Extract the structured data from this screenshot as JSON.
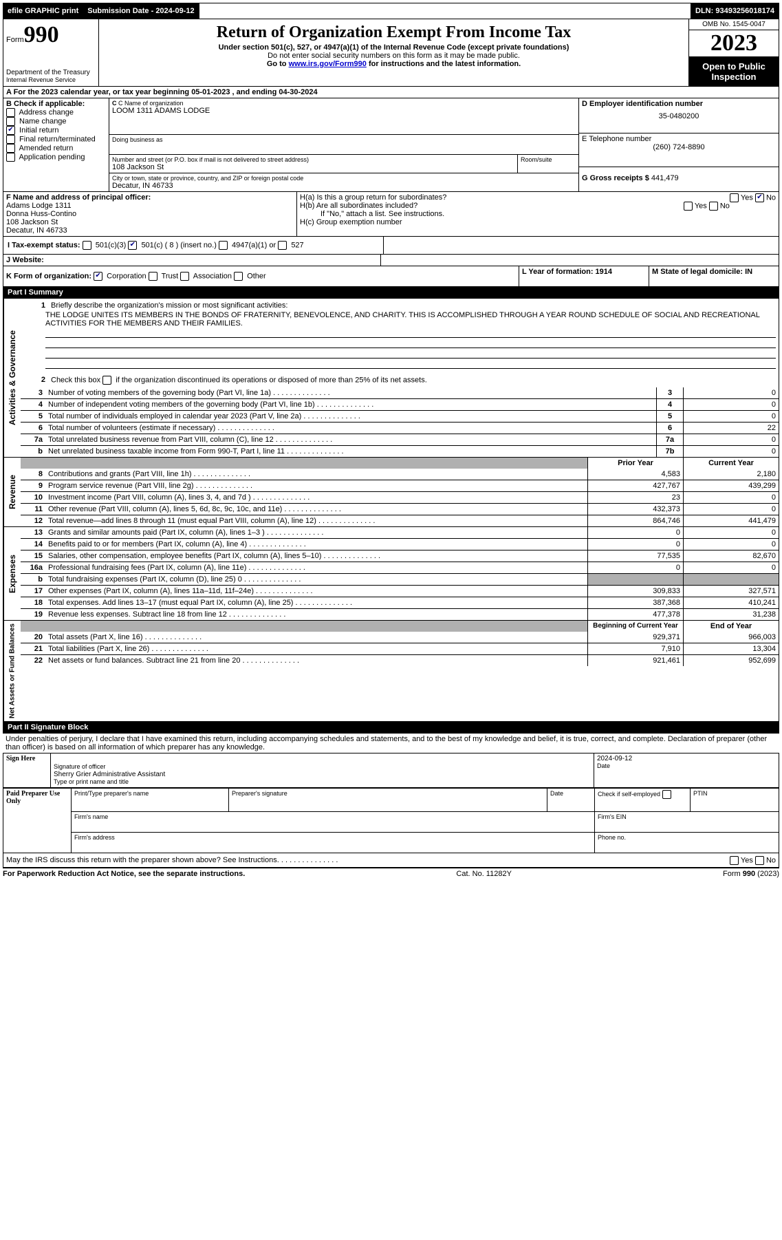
{
  "topbar": {
    "efile": "efile GRAPHIC print",
    "sub_label": "Submission Date - 2024-09-12",
    "dln": "DLN: 93493256018174"
  },
  "header": {
    "form": "Form",
    "form_num": "990",
    "title": "Return of Organization Exempt From Income Tax",
    "subtitle": "Under section 501(c), 527, or 4947(a)(1) of the Internal Revenue Code (except private foundations)",
    "ssn_warn": "Do not enter social security numbers on this form as it may be made public.",
    "goto": "Go to ",
    "goto_link": "www.irs.gov/Form990",
    "goto_after": " for instructions and the latest information.",
    "dept": "Department of the Treasury",
    "irs": "Internal Revenue Service",
    "omb": "OMB No. 1545-0047",
    "year": "2023",
    "open": "Open to Public Inspection"
  },
  "sectionA": {
    "A": "A For the 2023 calendar year, or tax year beginning 05-01-2023   , and ending 04-30-2024",
    "B_label": "B Check if applicable:",
    "B_items": [
      "Address change",
      "Name change",
      "Initial return",
      "Final return/terminated",
      "Amended return",
      "Application pending"
    ],
    "B_checked": [
      false,
      false,
      true,
      false,
      false,
      false
    ],
    "C_label": "C Name of organization",
    "C_name": "LOOM 1311 ADAMS LODGE",
    "dba_label": "Doing business as",
    "dba": "",
    "addr_label": "Number and street (or P.O. box if mail is not delivered to street address)",
    "room_label": "Room/suite",
    "addr": "108 Jackson St",
    "city_label": "City or town, state or province, country, and ZIP or foreign postal code",
    "city": "Decatur, IN  46733",
    "D_label": "D Employer identification number",
    "D": "35-0480200",
    "E_label": "E Telephone number",
    "E": "(260) 724-8890",
    "G_label": "G Gross receipts $",
    "G": "441,479",
    "F_label": "F  Name and address of principal officer:",
    "F_name": "Adams Lodge 1311",
    "F_name2": "Donna Huss-Contino",
    "F_addr": "108 Jackson St",
    "F_city": "Decatur, IN  46733",
    "Ha_label": "H(a)  Is this a group return for subordinates?",
    "Hb_label": "H(b)  Are all subordinates included?",
    "Hb_note": "If \"No,\" attach a list. See instructions.",
    "Hc_label": "H(c)  Group exemption number ",
    "yes": "Yes",
    "no": "No",
    "I_label": "I  Tax-exempt status:",
    "I_501c3": "501(c)(3)",
    "I_501c": "501(c) ( 8 ) (insert no.)",
    "I_4947": "4947(a)(1) or",
    "I_527": "527",
    "J_label": "J  Website: ",
    "K_label": "K Form of organization:",
    "K_corp": "Corporation",
    "K_trust": "Trust",
    "K_assoc": "Association",
    "K_other": "Other",
    "L_label": "L Year of formation: 1914",
    "M_label": "M State of legal domicile: IN"
  },
  "part1": {
    "title": "Part I      Summary",
    "q1": "Briefly describe the organization's mission or most significant activities:",
    "mission": "THE LODGE UNITES ITS MEMBERS IN THE BONDS OF FRATERNITY, BENEVOLENCE, AND CHARITY. THIS IS ACCOMPLISHED THROUGH A YEAR ROUND SCHEDULE OF SOCIAL AND RECREATIONAL ACTIVITIES FOR THE MEMBERS AND THEIR FAMILIES.",
    "q2": "Check this box       if the organization discontinued its operations or disposed of more than 25% of its net assets.",
    "lines_gov": [
      {
        "n": "3",
        "t": "Number of voting members of the governing body (Part VI, line 1a)",
        "c": "3",
        "v": "0"
      },
      {
        "n": "4",
        "t": "Number of independent voting members of the governing body (Part VI, line 1b)",
        "c": "4",
        "v": "0"
      },
      {
        "n": "5",
        "t": "Total number of individuals employed in calendar year 2023 (Part V, line 2a)",
        "c": "5",
        "v": "0"
      },
      {
        "n": "6",
        "t": "Total number of volunteers (estimate if necessary)",
        "c": "6",
        "v": "22"
      },
      {
        "n": "7a",
        "t": "Total unrelated business revenue from Part VIII, column (C), line 12",
        "c": "7a",
        "v": "0"
      },
      {
        "n": "b",
        "t": "Net unrelated business taxable income from Form 990-T, Part I, line 11",
        "c": "7b",
        "v": "0"
      }
    ],
    "prior_header": "Prior Year",
    "current_header": "Current Year",
    "revenue": [
      {
        "n": "8",
        "t": "Contributions and grants (Part VIII, line 1h)",
        "p": "4,583",
        "c": "2,180"
      },
      {
        "n": "9",
        "t": "Program service revenue (Part VIII, line 2g)",
        "p": "427,767",
        "c": "439,299"
      },
      {
        "n": "10",
        "t": "Investment income (Part VIII, column (A), lines 3, 4, and 7d )",
        "p": "23",
        "c": "0"
      },
      {
        "n": "11",
        "t": "Other revenue (Part VIII, column (A), lines 5, 6d, 8c, 9c, 10c, and 11e)",
        "p": "432,373",
        "c": "0"
      },
      {
        "n": "12",
        "t": "Total revenue—add lines 8 through 11 (must equal Part VIII, column (A), line 12)",
        "p": "864,746",
        "c": "441,479"
      }
    ],
    "expenses": [
      {
        "n": "13",
        "t": "Grants and similar amounts paid (Part IX, column (A), lines 1–3 )",
        "p": "0",
        "c": "0"
      },
      {
        "n": "14",
        "t": "Benefits paid to or for members (Part IX, column (A), line 4)",
        "p": "0",
        "c": "0"
      },
      {
        "n": "15",
        "t": "Salaries, other compensation, employee benefits (Part IX, column (A), lines 5–10)",
        "p": "77,535",
        "c": "82,670"
      },
      {
        "n": "16a",
        "t": "Professional fundraising fees (Part IX, column (A), line 11e)",
        "p": "0",
        "c": "0"
      },
      {
        "n": "b",
        "t": "Total fundraising expenses (Part IX, column (D), line 25) 0",
        "p": "",
        "c": "",
        "shaded": true
      },
      {
        "n": "17",
        "t": "Other expenses (Part IX, column (A), lines 11a–11d, 11f–24e)",
        "p": "309,833",
        "c": "327,571"
      },
      {
        "n": "18",
        "t": "Total expenses. Add lines 13–17 (must equal Part IX, column (A), line 25)",
        "p": "387,368",
        "c": "410,241"
      },
      {
        "n": "19",
        "t": "Revenue less expenses. Subtract line 18 from line 12",
        "p": "477,378",
        "c": "31,238"
      }
    ],
    "begin_header": "Beginning of Current Year",
    "end_header": "End of Year",
    "netassets": [
      {
        "n": "20",
        "t": "Total assets (Part X, line 16)",
        "p": "929,371",
        "c": "966,003"
      },
      {
        "n": "21",
        "t": "Total liabilities (Part X, line 26)",
        "p": "7,910",
        "c": "13,304"
      },
      {
        "n": "22",
        "t": "Net assets or fund balances. Subtract line 21 from line 20",
        "p": "921,461",
        "c": "952,699"
      }
    ],
    "vert_gov": "Activities & Governance",
    "vert_rev": "Revenue",
    "vert_exp": "Expenses",
    "vert_net": "Net Assets or Fund Balances"
  },
  "part2": {
    "title": "Part II     Signature Block",
    "perjury": "Under penalties of perjury, I declare that I have examined this return, including accompanying schedules and statements, and to the best of my knowledge and belief, it is true, correct, and complete. Declaration of preparer (other than officer) is based on all information of which preparer has any knowledge.",
    "sign_here": "Sign Here",
    "sig_officer": "Signature of officer",
    "sig_name": "Sherry Grier Administrative Assistant",
    "sig_type": "Type or print name and title",
    "date_label": "Date",
    "date": "2024-09-12",
    "paid": "Paid Preparer Use Only",
    "prep_name": "Print/Type preparer's name",
    "prep_sig": "Preparer's signature",
    "check_self": "Check        if self-employed",
    "ptin": "PTIN",
    "firm_name": "Firm's name  ",
    "firm_ein": "Firm's EIN  ",
    "firm_addr": "Firm's address  ",
    "phone": "Phone no.",
    "may_irs": "May the IRS discuss this return with the preparer shown above? See Instructions."
  },
  "footer": {
    "pra": "For Paperwork Reduction Act Notice, see the separate instructions.",
    "cat": "Cat. No. 11282Y",
    "form": "Form 990 (2023)"
  }
}
